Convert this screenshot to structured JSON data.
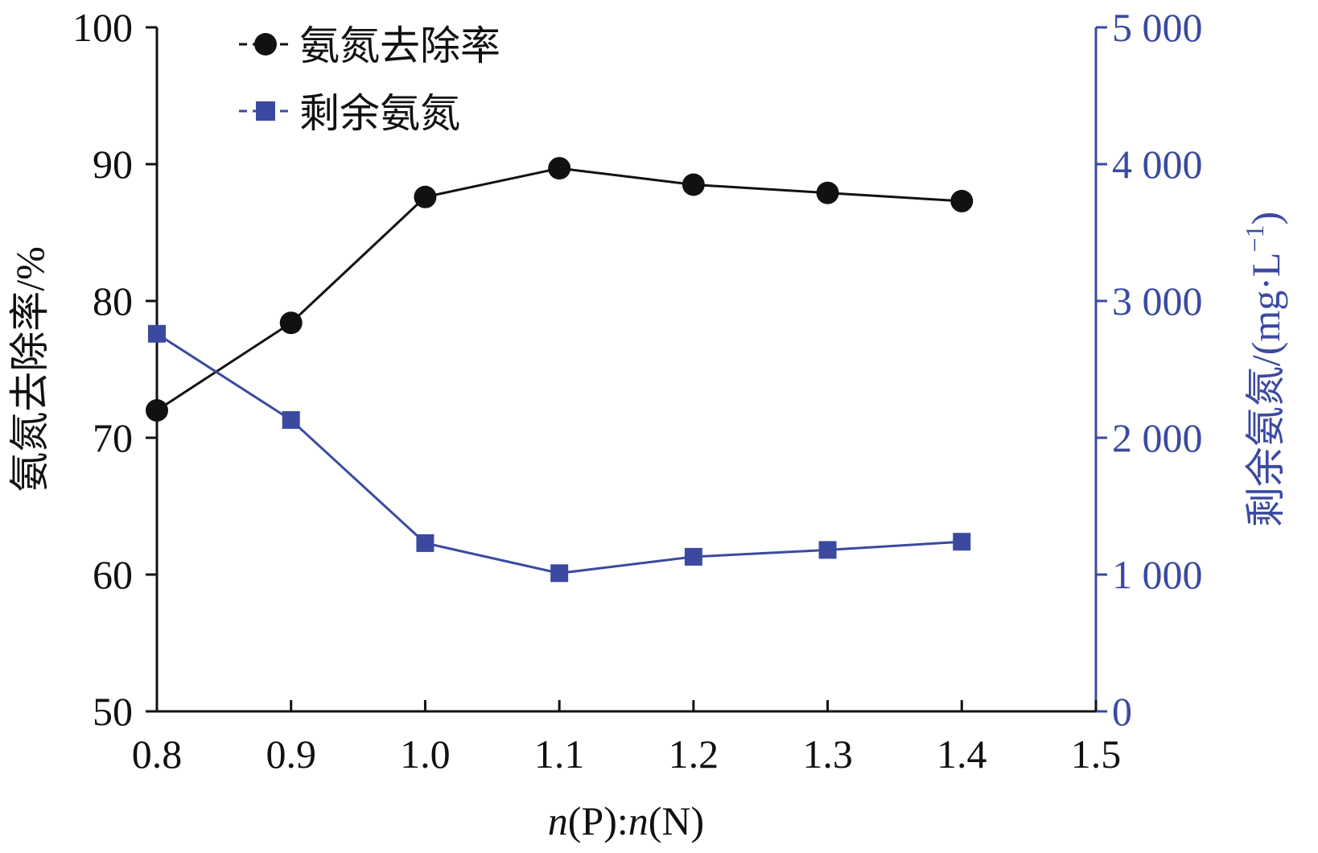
{
  "chart_data": {
    "type": "line",
    "title": "",
    "x": [
      0.8,
      0.9,
      1.0,
      1.1,
      1.2,
      1.3,
      1.4
    ],
    "x_ticks": [
      "0.8",
      "0.9",
      "1.0",
      "1.1",
      "1.2",
      "1.3",
      "1.4",
      "1.5"
    ],
    "xlim": [
      0.8,
      1.5
    ],
    "xlabel": {
      "italic_n1": "n",
      "part1": "(P):",
      "italic_n2": "n",
      "part2": "(N)"
    },
    "left_axis": {
      "label": "氨氮去除率/%",
      "ylim": [
        50,
        100
      ],
      "ticks": [
        "50",
        "60",
        "70",
        "80",
        "90",
        "100"
      ],
      "color": "#111111"
    },
    "right_axis": {
      "label": "剩余氨氮/(mg·L",
      "label_sup": "−1",
      "label_close": ")",
      "ylim": [
        0,
        5000
      ],
      "ticks": [
        "0",
        "1 000",
        "2 000",
        "3 000",
        "4 000",
        "5 000"
      ],
      "color": "#3b4aa0"
    },
    "series": [
      {
        "name": "氨氮去除率",
        "axis": "left",
        "marker": "circle",
        "color": "#111111",
        "values": [
          72.0,
          78.4,
          87.6,
          89.7,
          88.5,
          87.9,
          87.3
        ]
      },
      {
        "name": "剩余氨氮",
        "axis": "right",
        "marker": "square",
        "color": "#3b4aa0",
        "values": [
          2760,
          2130,
          1230,
          1010,
          1130,
          1180,
          1240
        ]
      }
    ],
    "legend_position": "top-left"
  }
}
